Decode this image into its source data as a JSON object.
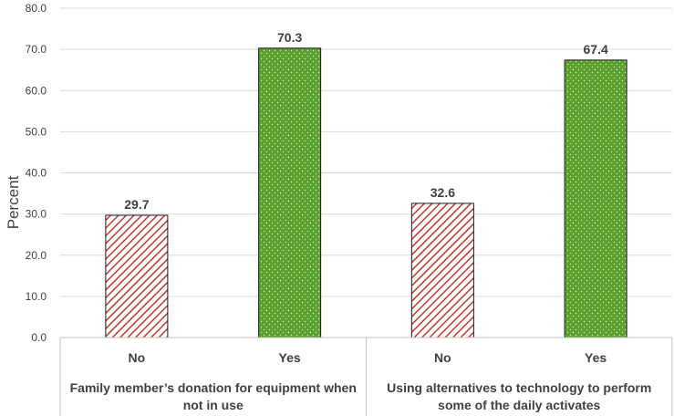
{
  "chart_data": {
    "type": "bar",
    "title": "",
    "ylabel": "Percent",
    "xlabel": "",
    "ylim": [
      0,
      80
    ],
    "yticks": [
      "0.0",
      "10.0",
      "20.0",
      "30.0",
      "40.0",
      "50.0",
      "60.0",
      "70.0",
      "80.0"
    ],
    "grid": true,
    "groups": [
      {
        "name_lines": [
          "Family member’s donation for equipment when",
          "not in use"
        ],
        "categories": [
          "No",
          "Yes"
        ],
        "values": [
          29.7,
          70.3
        ],
        "value_labels": [
          "29.7",
          "70.3"
        ]
      },
      {
        "name_lines": [
          "Using alternatives to technology to perform",
          "some of the daily activates"
        ],
        "categories": [
          "No",
          "Yes"
        ],
        "values": [
          32.6,
          67.4
        ],
        "value_labels": [
          "32.6",
          "67.4"
        ]
      }
    ],
    "series_colors": {
      "No": {
        "fill": "#ffffff",
        "pattern": "#c0392b",
        "stroke": "#1a1a1a"
      },
      "Yes": {
        "fill": "#5aa02c",
        "pattern": "#d8ecc8",
        "stroke": "#1a1a1a"
      }
    }
  }
}
